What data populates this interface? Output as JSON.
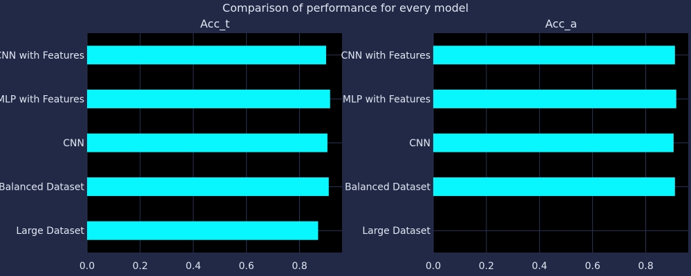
{
  "chart_data": {
    "title": "Comparison of performance for every model",
    "type": "bar",
    "orientation": "horizontal",
    "grid": true,
    "colors": {
      "figure_background": "#212946",
      "axes_background": "#000000",
      "grid": "#2a3459",
      "bar": "#08F7FE",
      "text": "#e0e6f0"
    },
    "subplots": [
      {
        "title": "Acc_t",
        "categories": [
          "CNN with Features",
          "MLP with Features",
          "CNN",
          "Balanced Dataset",
          "Large Dataset"
        ],
        "values": [
          0.9,
          0.915,
          0.905,
          0.91,
          0.87
        ],
        "xlim": [
          0,
          0.96
        ],
        "xticks": [
          "0.0",
          "0.2",
          "0.4",
          "0.6",
          "0.8"
        ]
      },
      {
        "title": "Acc_a",
        "categories": [
          "CNN with Features",
          "MLP with Features",
          "CNN",
          "Balanced Dataset",
          "Large Dataset"
        ],
        "values": [
          0.91,
          0.915,
          0.905,
          0.91,
          null
        ],
        "xlim": [
          0,
          0.96
        ],
        "xticks": [
          "0.0",
          "0.2",
          "0.4",
          "0.6",
          "0.8"
        ]
      }
    ]
  }
}
